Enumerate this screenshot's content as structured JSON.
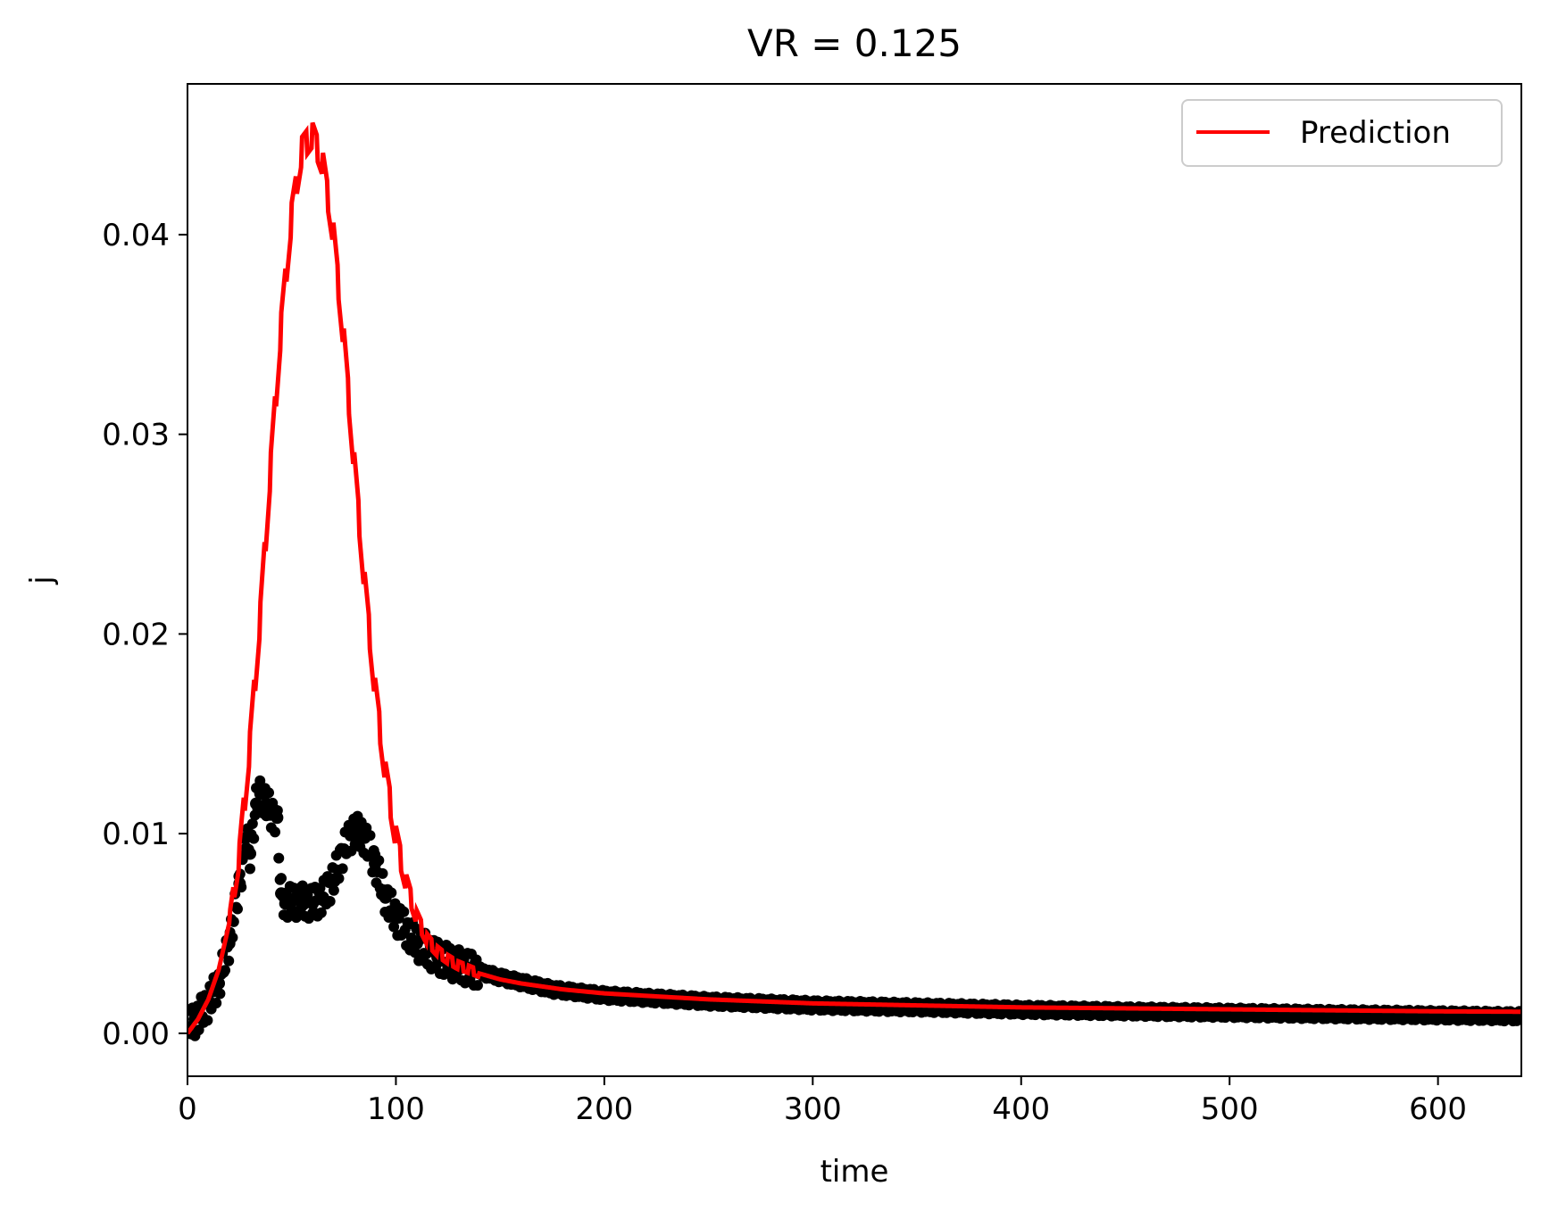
{
  "chart_data": {
    "type": "line",
    "title": "VR = 0.125",
    "xlabel": "time",
    "ylabel": "j",
    "xlim": [
      0,
      640
    ],
    "ylim": [
      -0.00215,
      0.04755
    ],
    "xticks": [
      0,
      100,
      200,
      300,
      400,
      500,
      600
    ],
    "xtick_labels": [
      "0",
      "100",
      "200",
      "300",
      "400",
      "500",
      "600"
    ],
    "yticks": [
      0.0,
      0.01,
      0.02,
      0.03,
      0.04
    ],
    "ytick_labels": [
      "0.00",
      "0.01",
      "0.02",
      "0.03",
      "0.04"
    ],
    "grid": false,
    "legend": {
      "location": "upper right",
      "entries": [
        {
          "label": "Prediction",
          "color": "#ff0000"
        }
      ]
    },
    "series": [
      {
        "name": "Prediction",
        "style": "line",
        "color": "#ff0000",
        "x": [
          0,
          5,
          10,
          15,
          20,
          25,
          30,
          35,
          40,
          45,
          50,
          55,
          60,
          65,
          70,
          75,
          80,
          85,
          90,
          95,
          100,
          105,
          110,
          115,
          120,
          125,
          130,
          140,
          150,
          160,
          180,
          200,
          250,
          300,
          350,
          400,
          450,
          500,
          550,
          600,
          640
        ],
        "y": [
          0.0,
          0.0007,
          0.0017,
          0.0032,
          0.0055,
          0.009,
          0.0145,
          0.021,
          0.0285,
          0.0355,
          0.041,
          0.0443,
          0.045,
          0.0435,
          0.04,
          0.0347,
          0.0285,
          0.0225,
          0.0172,
          0.013,
          0.0098,
          0.0075,
          0.0058,
          0.0047,
          0.0041,
          0.0037,
          0.0034,
          0.003,
          0.0027,
          0.0025,
          0.0022,
          0.002,
          0.0017,
          0.0015,
          0.0014,
          0.0013,
          0.00125,
          0.0012,
          0.00115,
          0.0011,
          0.00108
        ]
      },
      {
        "style": "markers",
        "color": "#000000",
        "x": [
          0,
          5,
          10,
          15,
          20,
          25,
          28,
          30,
          33,
          35,
          38,
          40,
          43,
          45,
          47,
          50,
          55,
          60,
          65,
          70,
          75,
          80,
          85,
          90,
          95,
          100,
          110,
          120,
          130,
          140,
          150,
          175,
          200,
          250,
          300,
          350,
          400,
          450,
          500,
          550,
          600,
          640
        ],
        "y": [
          0.0003,
          0.0008,
          0.0015,
          0.0025,
          0.0045,
          0.0075,
          0.0098,
          0.009,
          0.0115,
          0.012,
          0.0115,
          0.011,
          0.0108,
          0.007,
          0.0065,
          0.0066,
          0.0066,
          0.0065,
          0.0068,
          0.0077,
          0.0092,
          0.0102,
          0.0098,
          0.0085,
          0.0068,
          0.0058,
          0.0045,
          0.0038,
          0.0034,
          0.0031,
          0.0028,
          0.0022,
          0.0019,
          0.0016,
          0.0014,
          0.0013,
          0.00118,
          0.0011,
          0.00103,
          0.00096,
          0.0009,
          0.00085
        ]
      }
    ]
  }
}
